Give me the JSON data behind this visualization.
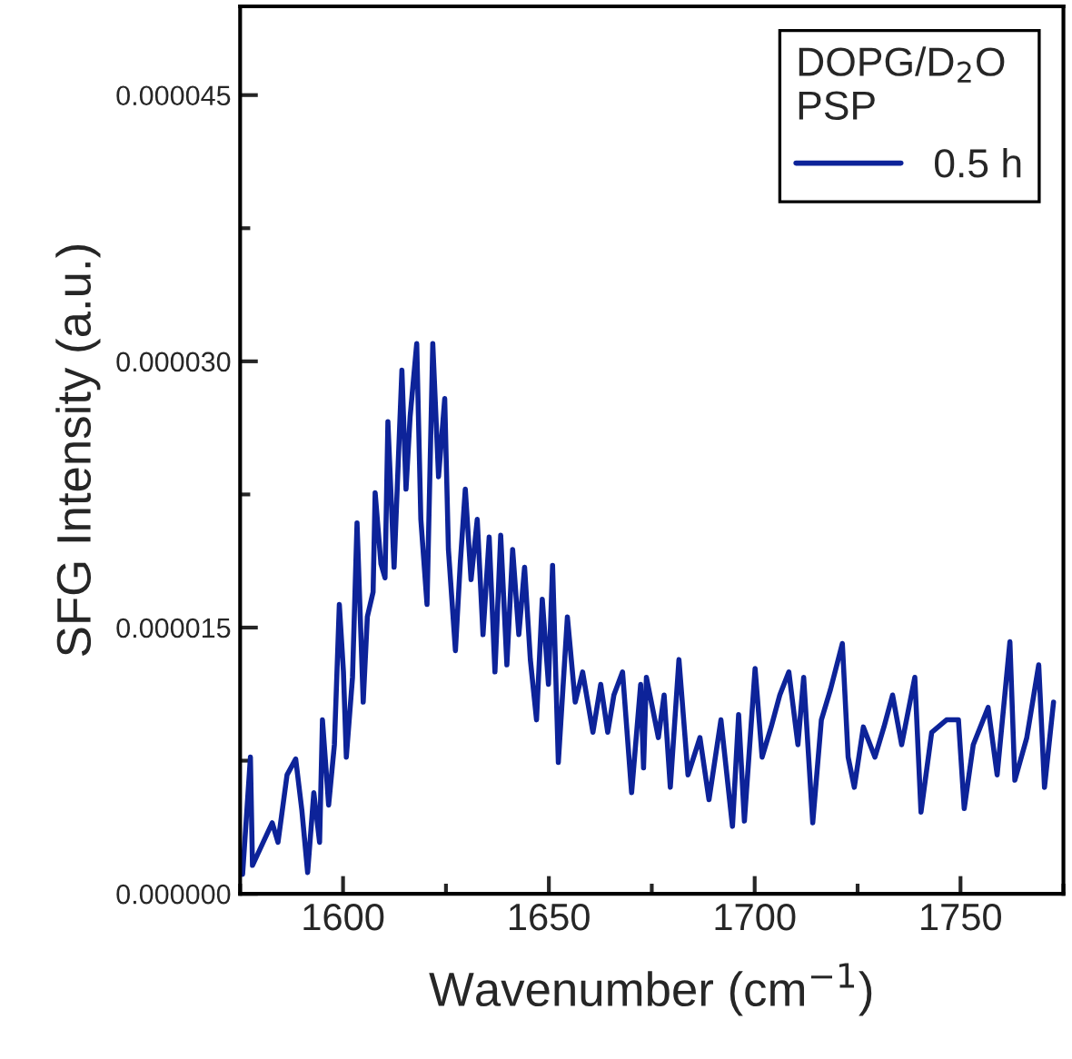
{
  "chart_data": {
    "type": "line",
    "xlabel": "Wavenumber (cm$^{−1}$)",
    "ylabel": "SFG Intensity (a.u.)",
    "legend_title": "DOPG/D$_{2}$O\nPSP",
    "x": [
      1575.6,
      1577.5,
      1578,
      1580.6,
      1582.8,
      1584.2,
      1586.4,
      1588.5,
      1590,
      1591.4,
      1592.9,
      1594.3,
      1595,
      1596.5,
      1597.9,
      1599.1,
      1600.1,
      1600.8,
      1602.3,
      1603.4,
      1604.9,
      1605.9,
      1607.3,
      1607.8,
      1609.2,
      1610.2,
      1610.9,
      1612.4,
      1614.3,
      1615.3,
      1616.3,
      1617.9,
      1618.9,
      1620.4,
      1621.8,
      1623.2,
      1624.7,
      1625.6,
      1627.3,
      1628.5,
      1629.7,
      1631.1,
      1632.6,
      1634,
      1635.5,
      1636.9,
      1638.3,
      1639.8,
      1641.2,
      1642.7,
      1644.1,
      1645.5,
      1647,
      1648.4,
      1649.9,
      1650.9,
      1652.3,
      1654.5,
      1656.4,
      1658.2,
      1660.7,
      1662.6,
      1664.3,
      1665.8,
      1667.9,
      1670.1,
      1672.3,
      1673,
      1673.7,
      1676.6,
      1678,
      1679.5,
      1681.6,
      1683.8,
      1686.7,
      1688.9,
      1691.8,
      1694.6,
      1696.1,
      1697.5,
      1700.1,
      1701.8,
      1704,
      1706.1,
      1708.3,
      1710.5,
      1711.9,
      1714.1,
      1716.2,
      1718.4,
      1721.3,
      1722.7,
      1724.2,
      1726.4,
      1729.2,
      1731.4,
      1733.5,
      1735.7,
      1738.9,
      1740.4,
      1743,
      1746.6,
      1749.5,
      1750.9,
      1753.1,
      1756.7,
      1758.9,
      1762,
      1763.2,
      1766.1,
      1769,
      1770.4,
      1772.6
    ],
    "series": [
      {
        "name": "0.5 h",
        "color": "#0d2399",
        "values": [
          1.1e-06,
          7.7e-06,
          1.6e-06,
          2.9e-06,
          4e-06,
          2.9e-06,
          6.7e-06,
          7.6e-06,
          4.7e-06,
          1.2e-06,
          5.7e-06,
          2.9e-06,
          9.8e-06,
          5e-06,
          8.4e-06,
          1.63e-05,
          1.25e-05,
          7.7e-06,
          1.22e-05,
          2.09e-05,
          1.08e-05,
          1.56e-05,
          1.7e-05,
          2.26e-05,
          1.86e-05,
          1.78e-05,
          2.66e-05,
          1.84e-05,
          2.95e-05,
          2.28e-05,
          2.69e-05,
          3.1e-05,
          2.11e-05,
          1.63e-05,
          3.1e-05,
          2.35e-05,
          2.79e-05,
          1.94e-05,
          1.37e-05,
          1.87e-05,
          2.28e-05,
          1.77e-05,
          2.11e-05,
          1.46e-05,
          2.01e-05,
          1.25e-05,
          2.02e-05,
          1.29e-05,
          1.94e-05,
          1.46e-05,
          1.84e-05,
          1.32e-05,
          9.8e-06,
          1.66e-05,
          1.18e-05,
          1.85e-05,
          7.4e-06,
          1.56e-05,
          1.08e-05,
          1.25e-05,
          9.1e-06,
          1.18e-05,
          9.1e-06,
          1.12e-05,
          1.25e-05,
          5.7e-06,
          1.18e-05,
          7.1e-06,
          1.22e-05,
          8.8e-06,
          1.12e-05,
          6e-06,
          1.32e-05,
          6.7e-06,
          8.8e-06,
          5.3e-06,
          9.8e-06,
          3.8e-06,
          1.01e-05,
          4.1e-06,
          1.27e-05,
          7.7e-06,
          9.4e-06,
          1.12e-05,
          1.25e-05,
          8.4e-06,
          1.22e-05,
          4e-06,
          9.8e-06,
          1.15e-05,
          1.41e-05,
          7.7e-06,
          6e-06,
          9.4e-06,
          7.7e-06,
          9.4e-06,
          1.12e-05,
          8.4e-06,
          1.22e-05,
          4.6e-06,
          9.1e-06,
          9.8e-06,
          9.8e-06,
          4.8e-06,
          8.4e-06,
          1.05e-05,
          6.7e-06,
          1.42e-05,
          6.4e-06,
          8.8e-06,
          1.29e-05,
          6e-06,
          1.08e-05
        ]
      }
    ],
    "xlim": [
      1575,
      1775
    ],
    "xticks": [
      1600,
      1650,
      1700,
      1750
    ],
    "ylim": [
      0,
      5e-05
    ],
    "yticks": [
      {
        "value": 0,
        "label": "0.000000"
      },
      {
        "value": 1.5e-05,
        "label": "0.000015"
      },
      {
        "value": 3e-05,
        "label": "0.000030"
      },
      {
        "value": 4.5e-05,
        "label": "0.000045"
      }
    ],
    "legend": "top right",
    "grid": false,
    "marker": "none",
    "line_style": "solid"
  }
}
